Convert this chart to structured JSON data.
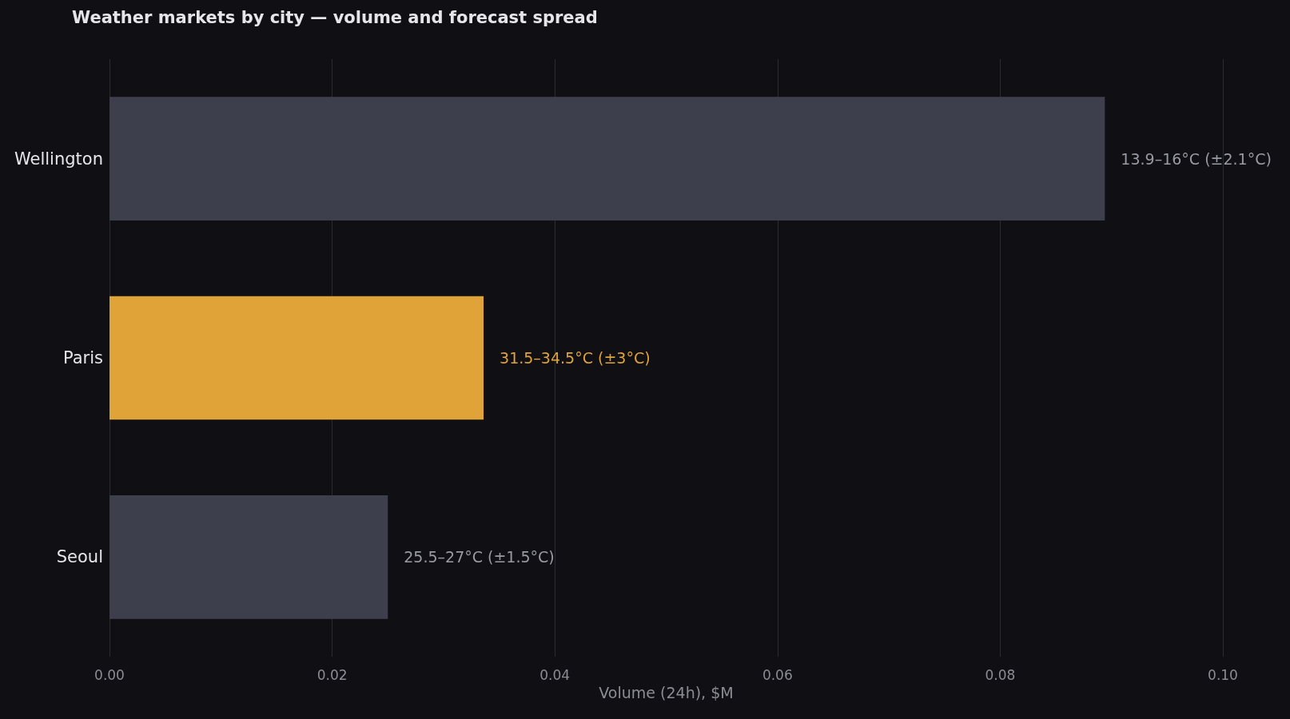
{
  "chart_data": {
    "type": "bar",
    "orientation": "horizontal",
    "title": "Weather markets by city — volume and forecast spread",
    "xlabel": "Volume (24h), $M",
    "categories": [
      "Wellington",
      "Paris",
      "Seoul"
    ],
    "values": [
      0.0894,
      0.0336,
      0.025
    ],
    "colors": [
      "#3d3f4c",
      "#e0a337",
      "#3d3f4c"
    ],
    "value_labels": [
      "13.9–16°C (±2.1°C)",
      "31.5–34.5°C (±3°C)",
      "25.5–27°C (±1.5°C)"
    ],
    "xlim": [
      0,
      0.1
    ],
    "xticks": [
      {
        "value": 0,
        "label": "0.00"
      },
      {
        "value": 0.02,
        "label": "0.02"
      },
      {
        "value": 0.04,
        "label": "0.04"
      },
      {
        "value": 0.06,
        "label": "0.06"
      },
      {
        "value": 0.08,
        "label": "0.08"
      },
      {
        "value": 0.1,
        "label": "0.10"
      }
    ],
    "grid": "x"
  }
}
